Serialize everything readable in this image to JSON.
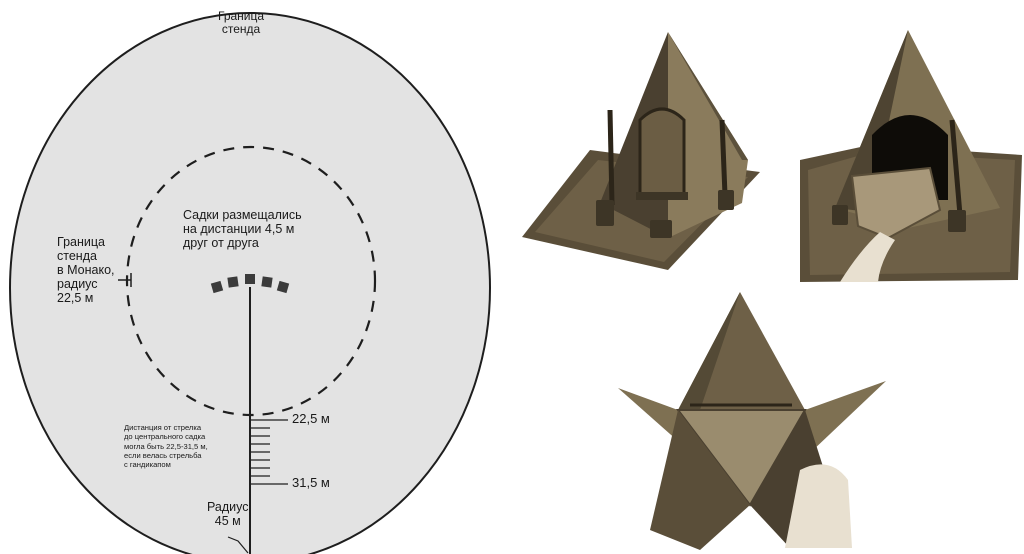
{
  "diagram": {
    "top_label": [
      "Граница",
      "стенда"
    ],
    "center_label": [
      "Садки размещались",
      "на дистанции 4,5 м",
      "друг от друга"
    ],
    "left_label": [
      "Граница",
      "стенда",
      "в Монако,",
      "радиус",
      "22,5 м"
    ],
    "distance_note": [
      "Дистанция от стрелка",
      "до центрального садка",
      "могла быть 22,5-31,5 м,",
      "если велась стрельба",
      "с гандикапом"
    ],
    "mark_22": "22,5 м",
    "mark_31": "31,5 м",
    "radius_label": [
      "Радиус",
      "45 м"
    ]
  },
  "colors": {
    "field": "#e3e3e3",
    "line": "#1e1e1e",
    "box": "#3b3b3b",
    "metal_dark": "#3d3526",
    "metal_mid": "#6e6047",
    "metal_light": "#9a8c6e"
  },
  "photos": [
    "pigeon-trap-closed-photo",
    "pigeon-trap-open-photo",
    "pigeon-trap-unfolded-photo"
  ]
}
